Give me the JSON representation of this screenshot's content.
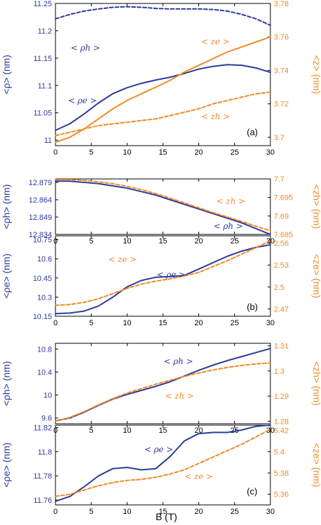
{
  "colors": {
    "blue": "#2b3a9c",
    "orange": "#f08a24",
    "axis": "#000000"
  },
  "x_axis": {
    "label": "B (T)",
    "ticks": [
      "0",
      "5",
      "10",
      "15",
      "20",
      "25",
      "30"
    ]
  },
  "chart_data": [
    {
      "panel": "(a)",
      "type": "line",
      "xlim": [
        0,
        30
      ],
      "left_axis": {
        "label": "<ρ> (nm)",
        "ylim": [
          10.99,
          11.25
        ],
        "ticks": [
          "11",
          "11.05",
          "11.1",
          "11.15",
          "11.2",
          "11.25"
        ]
      },
      "right_axis": {
        "label": "<z> (nm)",
        "ylim": [
          3.695,
          3.78
        ],
        "ticks": [
          "3.7",
          "3.72",
          "3.74",
          "3.76",
          "3.78"
        ]
      },
      "series": [
        {
          "name": "< ρh >",
          "axis": "left",
          "color": "blue",
          "dash": true,
          "x": [
            0,
            2,
            4,
            6,
            8,
            10,
            12,
            14,
            16,
            18,
            20,
            22,
            24,
            26,
            28,
            30
          ],
          "y": [
            11.222,
            11.23,
            11.236,
            11.24,
            11.243,
            11.244,
            11.243,
            11.241,
            11.24,
            11.24,
            11.24,
            11.239,
            11.236,
            11.23,
            11.222,
            11.21
          ]
        },
        {
          "name": "< ρe >",
          "axis": "left",
          "color": "blue",
          "dash": false,
          "x": [
            0,
            2,
            4,
            6,
            8,
            10,
            12,
            14,
            16,
            18,
            20,
            22,
            24,
            26,
            28,
            30
          ],
          "y": [
            11.018,
            11.03,
            11.048,
            11.068,
            11.085,
            11.096,
            11.104,
            11.11,
            11.115,
            11.122,
            11.13,
            11.135,
            11.138,
            11.137,
            11.132,
            11.124
          ]
        },
        {
          "name": "< ze >",
          "axis": "right",
          "color": "orange",
          "dash": false,
          "x": [
            0,
            2,
            4,
            6,
            8,
            10,
            12,
            14,
            16,
            18,
            20,
            22,
            24,
            26,
            28,
            30
          ],
          "y": [
            3.697,
            3.7,
            3.705,
            3.711,
            3.717,
            3.722,
            3.726,
            3.73,
            3.734,
            3.739,
            3.743,
            3.747,
            3.751,
            3.754,
            3.757,
            3.76
          ]
        },
        {
          "name": "< zh >",
          "axis": "right",
          "color": "orange",
          "dash": true,
          "x": [
            0,
            2,
            4,
            6,
            8,
            10,
            12,
            14,
            16,
            18,
            20,
            22,
            24,
            26,
            28,
            30
          ],
          "y": [
            3.701,
            3.703,
            3.705,
            3.707,
            3.708,
            3.709,
            3.71,
            3.711,
            3.713,
            3.715,
            3.717,
            3.72,
            3.722,
            3.724,
            3.726,
            3.727
          ]
        }
      ]
    },
    {
      "panel": "(b) upper",
      "type": "line",
      "xlim": [
        0,
        30
      ],
      "left_axis": {
        "label": "<ρh> (nm)",
        "ylim": [
          12.834,
          12.882
        ],
        "ticks": [
          "12.834",
          "12.849",
          "12.864",
          "12.879"
        ]
      },
      "right_axis": {
        "label": "<zh> (nm)",
        "ylim": [
          7.685,
          7.7
        ],
        "ticks": [
          "7.685",
          "7.69",
          "7.695",
          "7.7"
        ]
      },
      "series": [
        {
          "name": "< ρh >",
          "axis": "left",
          "color": "blue",
          "dash": false,
          "x": [
            0,
            2,
            4,
            6,
            8,
            10,
            12,
            14,
            16,
            18,
            20,
            22,
            24,
            26,
            28,
            30
          ],
          "y": [
            12.88,
            12.88,
            12.879,
            12.878,
            12.876,
            12.874,
            12.871,
            12.868,
            12.864,
            12.86,
            12.856,
            12.852,
            12.848,
            12.844,
            12.839,
            12.834
          ]
        },
        {
          "name": "< zh >",
          "axis": "right",
          "color": "orange",
          "dash": true,
          "x": [
            0,
            2,
            4,
            6,
            8,
            10,
            12,
            14,
            16,
            18,
            20,
            22,
            24,
            26,
            28,
            30
          ],
          "y": [
            7.6998,
            7.6998,
            7.6996,
            7.6992,
            7.6987,
            7.698,
            7.6971,
            7.696,
            7.6948,
            7.6935,
            7.6922,
            7.6909,
            7.6897,
            7.6885,
            7.6872,
            7.686
          ]
        }
      ]
    },
    {
      "panel": "(b)",
      "type": "line",
      "xlim": [
        0,
        30
      ],
      "left_axis": {
        "label": "<ρe> (nm)",
        "ylim": [
          10.15,
          10.78
        ],
        "ticks": [
          "10.15",
          "10.3",
          "10.45",
          "10.6",
          "10.75"
        ]
      },
      "right_axis": {
        "label": "<ze> (nm)",
        "ylim": [
          2.46,
          2.57
        ],
        "ticks": [
          "2.47",
          "2.5",
          "2.53",
          "2.56"
        ]
      },
      "series": [
        {
          "name": "< ρe >",
          "axis": "left",
          "color": "blue",
          "dash": false,
          "x": [
            0,
            2,
            4,
            6,
            8,
            10,
            12,
            14,
            16,
            18,
            20,
            22,
            24,
            26,
            28,
            30
          ],
          "y": [
            10.17,
            10.175,
            10.19,
            10.23,
            10.3,
            10.38,
            10.43,
            10.455,
            10.46,
            10.47,
            10.52,
            10.57,
            10.62,
            10.66,
            10.69,
            10.71
          ]
        },
        {
          "name": "< ze >",
          "axis": "right",
          "color": "orange",
          "dash": true,
          "x": [
            0,
            2,
            4,
            6,
            8,
            10,
            12,
            14,
            16,
            18,
            20,
            22,
            24,
            26,
            28,
            30
          ],
          "y": [
            2.475,
            2.476,
            2.479,
            2.484,
            2.491,
            2.498,
            2.504,
            2.508,
            2.511,
            2.515,
            2.52,
            2.528,
            2.536,
            2.545,
            2.554,
            2.563
          ]
        }
      ]
    },
    {
      "panel": "(c) upper",
      "type": "line",
      "xlim": [
        0,
        30
      ],
      "left_axis": {
        "label": "<ρh> (nm)",
        "ylim": [
          9.5,
          10.9
        ],
        "ticks": [
          "9.6",
          "10",
          "10.4",
          "10.8"
        ]
      },
      "right_axis": {
        "label": "<zh> (nm)",
        "ylim": [
          1.279,
          1.311
        ],
        "ticks": [
          "1.28",
          "1.29",
          "1.3",
          "1.31"
        ]
      },
      "series": [
        {
          "name": "< ρh >",
          "axis": "left",
          "color": "blue",
          "dash": false,
          "x": [
            0,
            2,
            4,
            6,
            8,
            10,
            12,
            14,
            16,
            18,
            20,
            22,
            24,
            26,
            28,
            30
          ],
          "y": [
            9.55,
            9.6,
            9.7,
            9.82,
            9.93,
            10.01,
            10.08,
            10.15,
            10.23,
            10.33,
            10.43,
            10.52,
            10.6,
            10.67,
            10.74,
            10.81
          ]
        },
        {
          "name": "< zh >",
          "axis": "right",
          "color": "orange",
          "dash": true,
          "x": [
            0,
            2,
            4,
            6,
            8,
            10,
            12,
            14,
            16,
            18,
            20,
            22,
            24,
            26,
            28,
            30
          ],
          "y": [
            1.28,
            1.2815,
            1.2838,
            1.2865,
            1.289,
            1.2912,
            1.293,
            1.2947,
            1.2963,
            1.2978,
            1.2992,
            1.3004,
            1.3014,
            1.3022,
            1.3028,
            1.3032
          ]
        }
      ]
    },
    {
      "panel": "(c)",
      "type": "line",
      "xlim": [
        0,
        30
      ],
      "left_axis": {
        "label": "<ρe> (nm)",
        "ylim": [
          11.756,
          11.822
        ],
        "ticks": [
          "11.76",
          "11.78",
          "11.8",
          "11.82"
        ]
      },
      "right_axis": {
        "label": "<ze> (nm)",
        "ylim": [
          5.35,
          5.425
        ],
        "ticks": [
          "5.36",
          "5.38",
          "5.4",
          "5.42"
        ]
      },
      "series": [
        {
          "name": "< ρe >",
          "axis": "left",
          "color": "blue",
          "dash": false,
          "x": [
            0,
            2,
            4,
            6,
            8,
            10,
            12,
            14,
            16,
            18,
            20,
            22,
            24,
            26,
            28,
            30
          ],
          "y": [
            11.759,
            11.763,
            11.771,
            11.78,
            11.786,
            11.787,
            11.785,
            11.786,
            11.796,
            11.809,
            11.815,
            11.816,
            11.816,
            11.818,
            11.821,
            11.822
          ]
        },
        {
          "name": "< ze >",
          "axis": "right",
          "color": "orange",
          "dash": true,
          "x": [
            0,
            2,
            4,
            6,
            8,
            10,
            12,
            14,
            16,
            18,
            20,
            22,
            24,
            26,
            28,
            30
          ],
          "y": [
            5.358,
            5.36,
            5.364,
            5.368,
            5.371,
            5.373,
            5.374,
            5.376,
            5.379,
            5.383,
            5.389,
            5.395,
            5.401,
            5.407,
            5.414,
            5.421
          ]
        }
      ]
    }
  ],
  "annotations": {
    "a_rho_h": "< ρh >",
    "a_rho_e": "< ρe >",
    "a_z_e": "< ze >",
    "a_z_h": "< zh >",
    "b1_z_h": "< zh >",
    "b1_rho_h": "< ρh >",
    "b2_z_e": "< ze >",
    "b2_rho_e": "< ρe >",
    "c1_rho_h": "< ρh >",
    "c1_z_h": "< zh >",
    "c2_rho_e": "< ρe >",
    "c2_z_e": "< ze >"
  },
  "panel_labels": {
    "a": "(a)",
    "b": "(b)",
    "c": "(c)"
  }
}
